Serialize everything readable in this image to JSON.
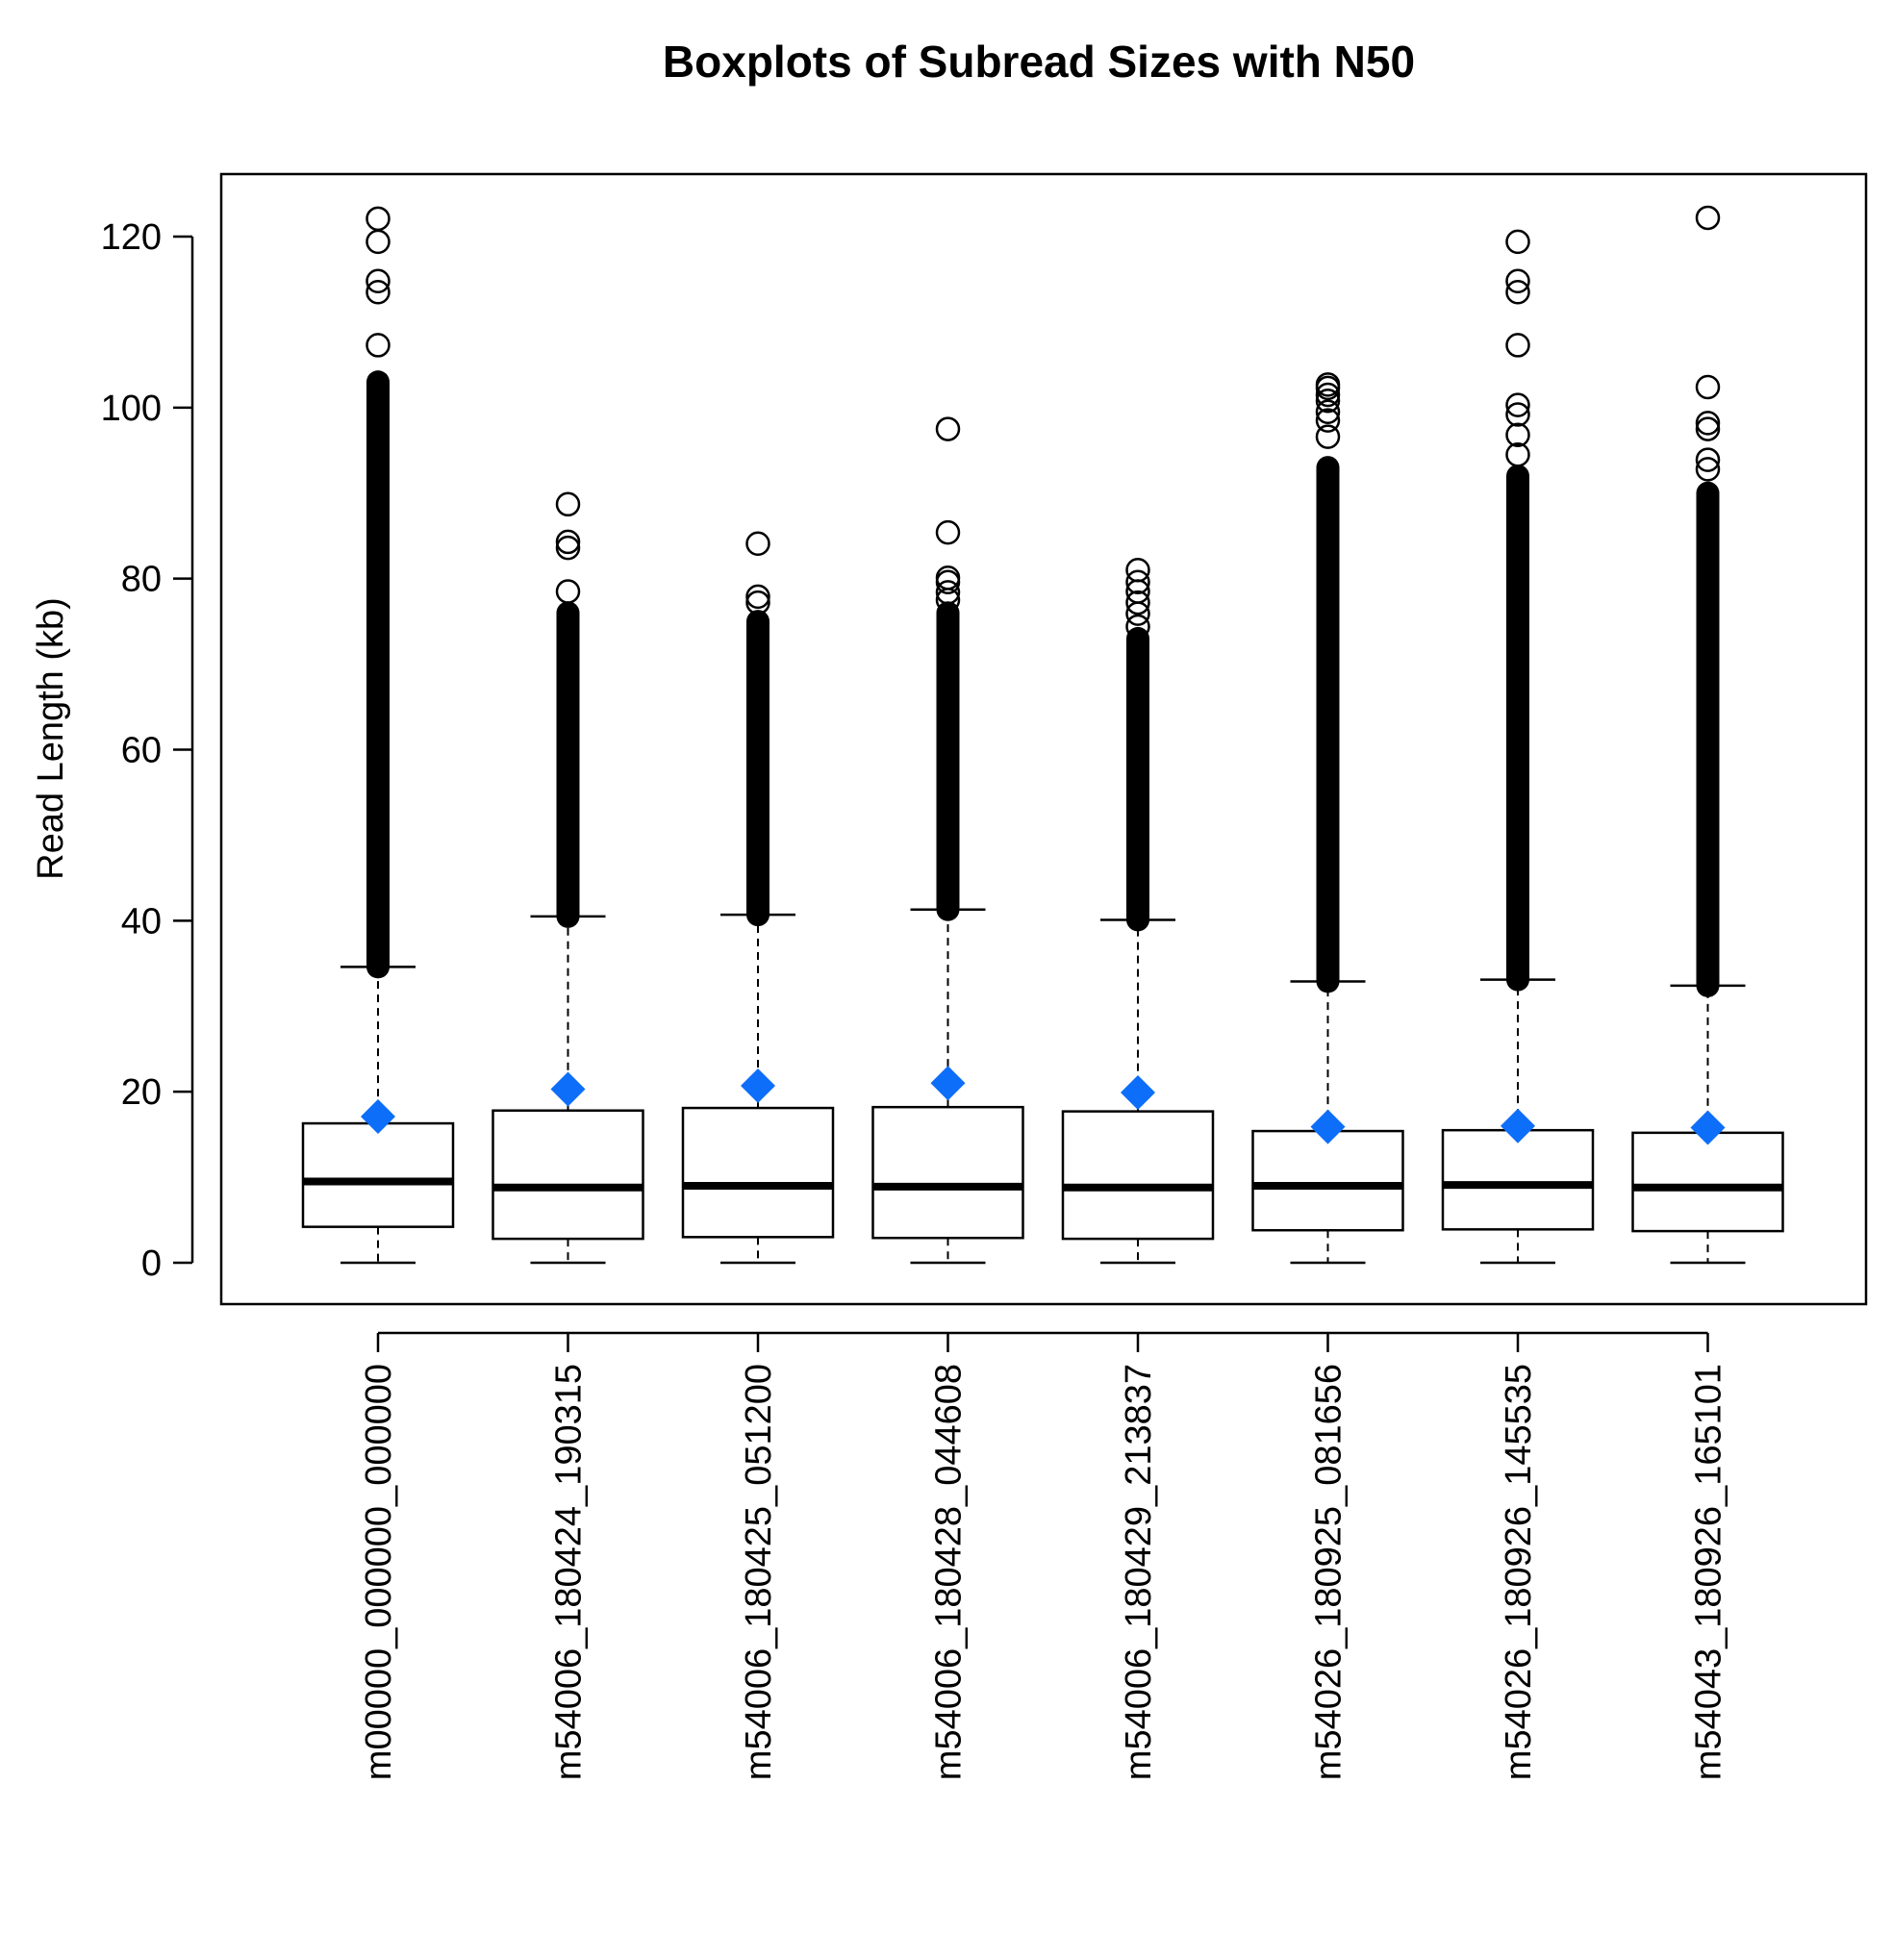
{
  "chart_data": {
    "type": "boxplot",
    "title": "Boxplots of Subread Sizes with N50",
    "ylabel": "Read Length (kb)",
    "xlabel": "",
    "ylim": [
      -5,
      127
    ],
    "yticks": [
      0,
      20,
      40,
      60,
      80,
      100,
      120
    ],
    "grid": false,
    "colors": {
      "n50_marker": "#0d6ef9",
      "box_stroke": "#000000"
    },
    "categories": [
      "m00000_000000_000000",
      "m54006_180424_190315",
      "m54006_180425_051200",
      "m54006_180428_044608",
      "m54006_180429_213837",
      "m54026_180925_081656",
      "m54026_180926_145535",
      "m54043_180926_165101"
    ],
    "boxes": [
      {
        "whisker_low": 0,
        "q1": 4.2,
        "median": 9.5,
        "q3": 16.3,
        "whisker_high": 34.6,
        "outlier_dense_from": 34.6,
        "outlier_dense_to": 103,
        "outliers": [
          107.3,
          113.5,
          114.8,
          119.4,
          122.1
        ],
        "n50": 17.1
      },
      {
        "whisker_low": 0,
        "q1": 2.8,
        "median": 8.8,
        "q3": 17.8,
        "whisker_high": 40.5,
        "outlier_dense_from": 40.5,
        "outlier_dense_to": 76,
        "outliers": [
          78.5,
          83.6,
          84.3,
          88.7
        ],
        "n50": 20.3
      },
      {
        "whisker_low": 0,
        "q1": 3.0,
        "median": 9.0,
        "q3": 18.1,
        "whisker_high": 40.7,
        "outlier_dense_from": 40.7,
        "outlier_dense_to": 75,
        "outliers": [
          77.2,
          77.9,
          84.1
        ],
        "n50": 20.7
      },
      {
        "whisker_low": 0,
        "q1": 2.9,
        "median": 8.9,
        "q3": 18.2,
        "whisker_high": 41.3,
        "outlier_dense_from": 41.3,
        "outlier_dense_to": 76,
        "outliers": [
          77.5,
          78.4,
          79.6,
          80.1,
          85.4,
          97.5
        ],
        "n50": 21.0
      },
      {
        "whisker_low": 0,
        "q1": 2.8,
        "median": 8.8,
        "q3": 17.7,
        "whisker_high": 40.1,
        "outlier_dense_from": 40.1,
        "outlier_dense_to": 73,
        "outliers": [
          74.4,
          75.9,
          77.2,
          78.5,
          79.6,
          81.0
        ],
        "n50": 19.9
      },
      {
        "whisker_low": 0,
        "q1": 3.8,
        "median": 9.0,
        "q3": 15.4,
        "whisker_high": 32.9,
        "outlier_dense_from": 32.9,
        "outlier_dense_to": 93,
        "outliers": [
          96.6,
          98.5,
          99.5,
          100.8,
          101.5,
          102.3,
          102.7
        ],
        "n50": 15.9
      },
      {
        "whisker_low": 0,
        "q1": 3.9,
        "median": 9.1,
        "q3": 15.5,
        "whisker_high": 33.1,
        "outlier_dense_from": 33.1,
        "outlier_dense_to": 92,
        "outliers": [
          94.5,
          96.8,
          99.2,
          100.3,
          107.3,
          113.5,
          114.8,
          119.4
        ],
        "n50": 16.0
      },
      {
        "whisker_low": 0,
        "q1": 3.7,
        "median": 8.8,
        "q3": 15.2,
        "whisker_high": 32.4,
        "outlier_dense_from": 32.4,
        "outlier_dense_to": 90,
        "outliers": [
          92.8,
          93.9,
          97.5,
          98.2,
          102.4,
          122.2
        ],
        "n50": 15.8
      }
    ]
  }
}
